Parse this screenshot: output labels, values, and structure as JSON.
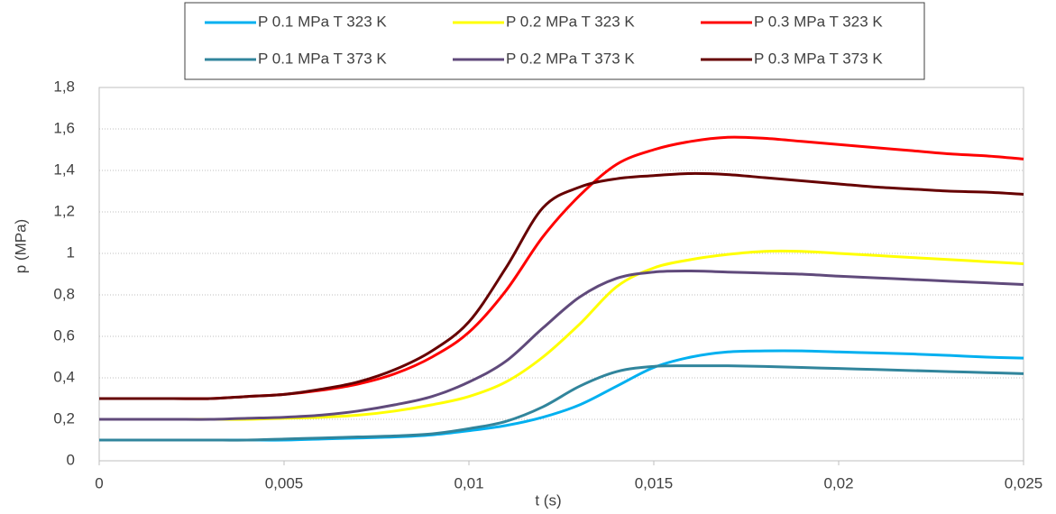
{
  "chart_data": {
    "type": "line",
    "x_label": "t (s)",
    "y_label": "p (MPa)",
    "x": [
      0,
      0.001,
      0.002,
      0.003,
      0.004,
      0.005,
      0.006,
      0.007,
      0.008,
      0.009,
      0.01,
      0.011,
      0.012,
      0.013,
      0.014,
      0.015,
      0.016,
      0.017,
      0.018,
      0.019,
      0.02,
      0.021,
      0.022,
      0.023,
      0.024,
      0.025
    ],
    "series": [
      {
        "name": "P 0.1 MPa T 323 K",
        "color": "#00b0f0",
        "values": [
          0.1,
          0.1,
          0.1,
          0.1,
          0.1,
          0.1,
          0.105,
          0.11,
          0.115,
          0.125,
          0.145,
          0.17,
          0.21,
          0.27,
          0.36,
          0.45,
          0.5,
          0.525,
          0.53,
          0.53,
          0.525,
          0.52,
          0.515,
          0.508,
          0.5,
          0.495
        ]
      },
      {
        "name": "P 0.2 MPa T 323 K",
        "color": "#ffff00",
        "values": [
          0.2,
          0.2,
          0.2,
          0.2,
          0.2,
          0.205,
          0.21,
          0.22,
          0.24,
          0.27,
          0.31,
          0.38,
          0.5,
          0.66,
          0.84,
          0.93,
          0.97,
          0.995,
          1.01,
          1.01,
          1.0,
          0.99,
          0.98,
          0.97,
          0.96,
          0.95
        ]
      },
      {
        "name": "P 0.3 MPa T 323 K",
        "color": "#ff0000",
        "values": [
          0.3,
          0.3,
          0.3,
          0.3,
          0.31,
          0.32,
          0.34,
          0.37,
          0.42,
          0.5,
          0.62,
          0.82,
          1.08,
          1.28,
          1.43,
          1.5,
          1.54,
          1.56,
          1.555,
          1.54,
          1.525,
          1.51,
          1.495,
          1.48,
          1.47,
          1.455
        ]
      },
      {
        "name": "P 0.1 MPa T 373 K",
        "color": "#31859c",
        "values": [
          0.1,
          0.1,
          0.1,
          0.1,
          0.1,
          0.105,
          0.11,
          0.115,
          0.12,
          0.13,
          0.155,
          0.19,
          0.26,
          0.36,
          0.43,
          0.455,
          0.458,
          0.458,
          0.455,
          0.45,
          0.445,
          0.44,
          0.435,
          0.43,
          0.425,
          0.42
        ]
      },
      {
        "name": "P 0.2 MPa T 373 K",
        "color": "#604a7b",
        "values": [
          0.2,
          0.2,
          0.2,
          0.2,
          0.205,
          0.21,
          0.22,
          0.24,
          0.27,
          0.31,
          0.38,
          0.48,
          0.64,
          0.79,
          0.88,
          0.91,
          0.915,
          0.91,
          0.905,
          0.9,
          0.89,
          0.882,
          0.874,
          0.866,
          0.858,
          0.85
        ]
      },
      {
        "name": "P 0.3 MPa T 373 K",
        "color": "#660000",
        "values": [
          0.3,
          0.3,
          0.3,
          0.3,
          0.31,
          0.32,
          0.345,
          0.38,
          0.44,
          0.53,
          0.67,
          0.93,
          1.22,
          1.32,
          1.36,
          1.375,
          1.385,
          1.38,
          1.365,
          1.35,
          1.335,
          1.32,
          1.31,
          1.3,
          1.295,
          1.285
        ]
      }
    ],
    "xlim": [
      0,
      0.025
    ],
    "xticks": [
      0,
      {
        "value": 0.005,
        "label": "0,005"
      },
      {
        "value": 0.01,
        "label": "0,01"
      },
      {
        "value": 0.015,
        "label": "0,015"
      },
      {
        "value": 0.02,
        "label": "0,02"
      },
      {
        "value": 0.025,
        "label": "0,025"
      }
    ],
    "ylim": [
      0,
      1.8
    ],
    "yticks": [
      0,
      {
        "value": 0.2,
        "label": "0,2"
      },
      {
        "value": 0.4,
        "label": "0,4"
      },
      {
        "value": 0.6,
        "label": "0,6"
      },
      {
        "value": 0.8,
        "label": "0,8"
      },
      1,
      {
        "value": 1.2,
        "label": "1,2"
      },
      {
        "value": 1.4,
        "label": "1,4"
      },
      {
        "value": 1.6,
        "label": "1,6"
      },
      {
        "value": 1.8,
        "label": "1,8"
      }
    ],
    "grid": true,
    "legend": "top"
  }
}
